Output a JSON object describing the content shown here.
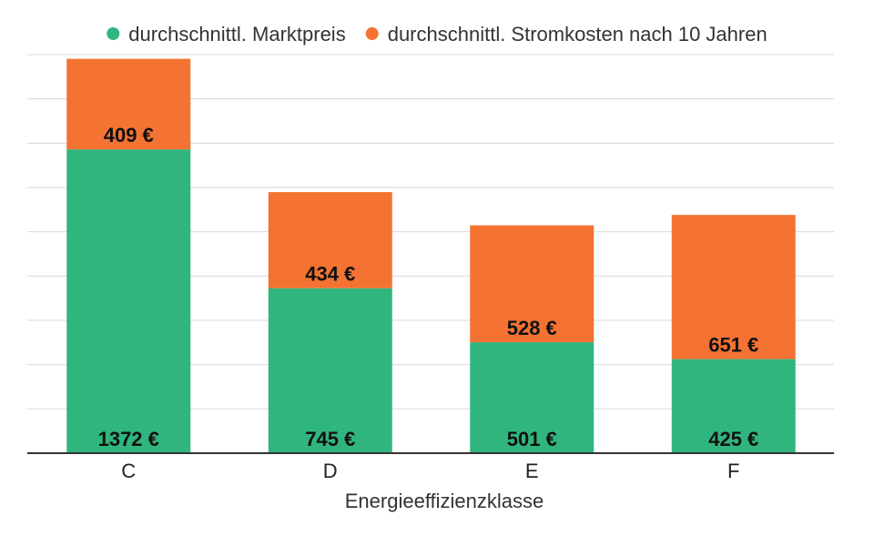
{
  "chart_data": {
    "type": "bar",
    "stacked": true,
    "categories": [
      "C",
      "D",
      "E",
      "F"
    ],
    "series": [
      {
        "name": "durchschnittl. Marktpreis",
        "values": [
          1372,
          745,
          501,
          425
        ],
        "labels": [
          "1372 €",
          "745 €",
          "501 €",
          "425 €"
        ],
        "color": "#31b57f"
      },
      {
        "name": "durchschnittl. Stromkosten nach 10 Jahren",
        "values": [
          409,
          434,
          528,
          651
        ],
        "labels": [
          "409 €",
          "434 €",
          "528 €",
          "651 €"
        ],
        "color": "#f47332"
      }
    ],
    "title": "",
    "xlabel": "Energieeffizienzklasse",
    "ylabel": "",
    "ylim": [
      0,
      1800
    ],
    "grid": true,
    "legend_position": "top"
  }
}
